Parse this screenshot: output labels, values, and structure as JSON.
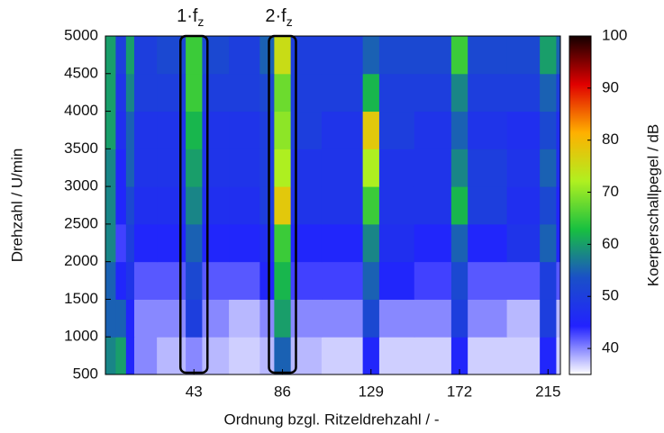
{
  "chart_data": {
    "type": "heatmap",
    "annotations": [
      {
        "label": "1·f",
        "subscript": "z",
        "x": 43
      },
      {
        "label": "2·f",
        "subscript": "z",
        "x": 86
      }
    ],
    "x_label": "Ordnung bzgl. Ritzeldrehzahl / -",
    "y_label": "Drehzahl / U/min",
    "colorbar_label": "Koerperschallpegel / dB",
    "x_edges": [
      0,
      5,
      10,
      14,
      25,
      39,
      47,
      60,
      75,
      82,
      90,
      105,
      125,
      133,
      150,
      168,
      176,
      195,
      211,
      219,
      221
    ],
    "y_edges": [
      500,
      1000,
      1500,
      2000,
      2500,
      3000,
      3500,
      4000,
      4500,
      5000
    ],
    "z": [
      [
        58,
        60,
        45,
        40,
        38,
        40,
        38,
        37,
        38,
        55,
        38,
        37,
        45,
        37,
        37,
        45,
        37,
        37,
        45,
        37
      ],
      [
        55,
        55,
        45,
        40,
        40,
        50,
        40,
        38,
        40,
        60,
        40,
        40,
        52,
        40,
        40,
        50,
        40,
        38,
        50,
        38
      ],
      [
        55,
        45,
        48,
        42,
        42,
        52,
        42,
        42,
        45,
        62,
        43,
        43,
        55,
        45,
        43,
        52,
        42,
        42,
        50,
        42
      ],
      [
        58,
        43,
        50,
        45,
        45,
        55,
        45,
        45,
        47,
        65,
        45,
        45,
        58,
        47,
        45,
        55,
        45,
        48,
        55,
        45
      ],
      [
        58,
        45,
        52,
        47,
        47,
        58,
        47,
        47,
        50,
        78,
        48,
        48,
        65,
        48,
        48,
        62,
        50,
        47,
        52,
        45
      ],
      [
        58,
        45,
        55,
        48,
        48,
        60,
        48,
        48,
        50,
        72,
        48,
        48,
        72,
        48,
        48,
        58,
        50,
        48,
        55,
        47
      ],
      [
        60,
        47,
        55,
        48,
        48,
        62,
        48,
        48,
        50,
        70,
        50,
        48,
        78,
        50,
        48,
        55,
        48,
        47,
        52,
        47
      ],
      [
        60,
        48,
        58,
        50,
        50,
        65,
        50,
        50,
        52,
        68,
        50,
        50,
        62,
        50,
        50,
        58,
        50,
        50,
        55,
        50
      ],
      [
        60,
        50,
        60,
        50,
        52,
        65,
        52,
        50,
        55,
        75,
        50,
        50,
        55,
        52,
        52,
        65,
        52,
        52,
        60,
        55
      ]
    ],
    "xlim": [
      0,
      221
    ],
    "xticks": [
      43,
      86,
      129,
      172,
      215
    ],
    "ylim": [
      500,
      5000
    ],
    "yticks": [
      500,
      1000,
      1500,
      2000,
      2500,
      3000,
      3500,
      4000,
      4500,
      5000
    ],
    "zlim": [
      35,
      100
    ],
    "zticks": [
      40,
      50,
      60,
      70,
      80,
      90,
      100
    ],
    "colorscale": [
      "#ffffff",
      "#2222ff",
      "#1a50c8",
      "#18c040",
      "#b0f020",
      "#ffb000",
      "#e00000",
      "#140000"
    ]
  }
}
